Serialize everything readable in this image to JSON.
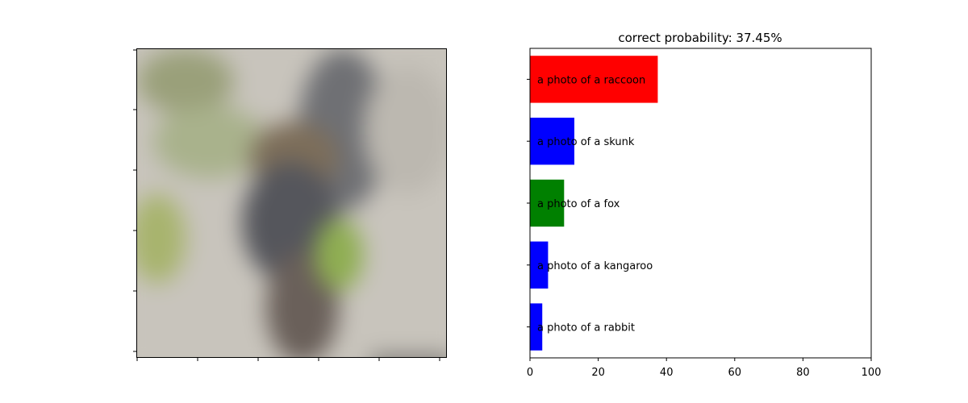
{
  "image_panel": {
    "description_icon": "blurred-animal-photo",
    "x_ticks": [
      "",
      "",
      "",
      "",
      "",
      ""
    ],
    "y_ticks": [
      "",
      "",
      "",
      "",
      "",
      ""
    ]
  },
  "chart_data": {
    "type": "bar",
    "orientation": "horizontal",
    "title": "correct probability: 37.45%",
    "xlabel": "",
    "ylabel": "",
    "xlim": [
      0,
      100
    ],
    "x_ticks": [
      0,
      20,
      40,
      60,
      80,
      100
    ],
    "categories": [
      "a photo of a raccoon",
      "a photo of a skunk",
      "a photo of a fox",
      "a photo of a kangaroo",
      "a photo of a rabbit"
    ],
    "values": [
      37.45,
      13.0,
      10.0,
      5.3,
      3.6
    ],
    "colors": [
      "#ff0000",
      "#0000ff",
      "#008000",
      "#0000ff",
      "#0000ff"
    ],
    "grid": false
  }
}
